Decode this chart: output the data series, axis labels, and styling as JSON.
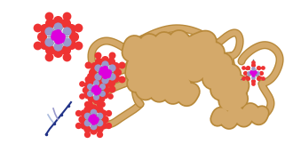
{
  "bg_color": "#ffffff",
  "protein_color": "#D4A96A",
  "protein_edge_color": "#B8893A",
  "cluster_colors": {
    "oxygen": "#EE3333",
    "vanadium": "#9999CC",
    "magenta": "#DD00DD",
    "gray": "#777777",
    "dark_blue": "#223388",
    "light_blue": "#AABBDD"
  },
  "figsize": [
    3.21,
    1.89
  ],
  "dpi": 100
}
